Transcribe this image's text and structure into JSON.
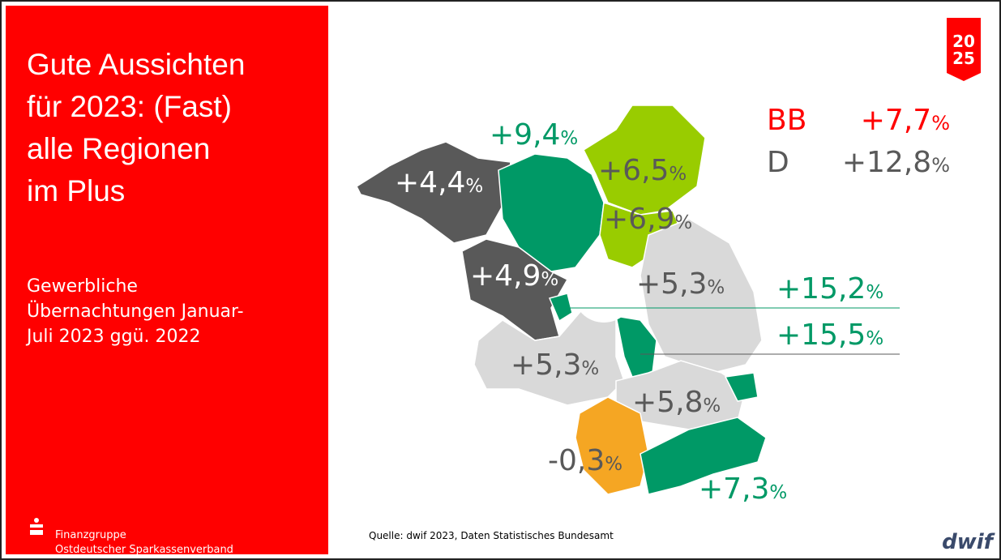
{
  "slide": {
    "title_lines": [
      "Gute Aussichten",
      "für 2023: (Fast)",
      "alle Regionen",
      "im Plus"
    ],
    "subtitle_lines": [
      "Gewerbliche",
      "Übernachtungen Januar-",
      "Juli 2023 ggü. 2022"
    ],
    "brand_lines": [
      "Finanzgruppe",
      "Ostdeutscher Sparkassenverband"
    ],
    "source": "Quelle: dwif 2023, Daten Statistisches Bundesamt",
    "logo": "dwif",
    "badge_top": "20",
    "badge_bottom": "25"
  },
  "summary": [
    {
      "name": "BB",
      "text": "+7,7",
      "unit": "%"
    },
    {
      "name": "D",
      "text": "+12,8",
      "unit": "%"
    }
  ],
  "regions": [
    {
      "text": "+9,4",
      "unit": "%"
    },
    {
      "text": "+4,4",
      "unit": "%"
    },
    {
      "text": "+6,5",
      "unit": "%"
    },
    {
      "text": "+6,9",
      "unit": "%"
    },
    {
      "text": "+4,9",
      "unit": "%"
    },
    {
      "text": "+5,3",
      "unit": "%"
    },
    {
      "text": "+15,2",
      "unit": "%"
    },
    {
      "text": "+15,5",
      "unit": "%"
    },
    {
      "text": "+5,3",
      "unit": "%"
    },
    {
      "text": "+5,8",
      "unit": "%"
    },
    {
      "text": "-0,3",
      "unit": "%"
    },
    {
      "text": "+7,3",
      "unit": "%"
    }
  ]
}
